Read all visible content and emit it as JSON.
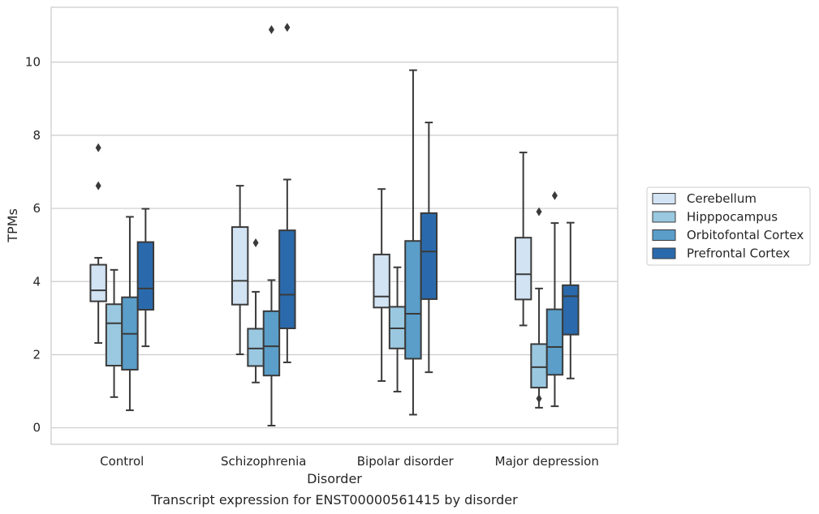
{
  "chart_data": {
    "type": "box",
    "xlabel": "Disorder",
    "ylabel": "TPMs",
    "caption": "Transcript expression for ENST00000561415 by disorder",
    "ylim": [
      -0.45,
      11.5
    ],
    "yticks": [
      "0",
      "2",
      "4",
      "6",
      "8",
      "10"
    ],
    "grid": "horizontal",
    "legend_position": "right",
    "categories": [
      "Control",
      "Schizophrenia",
      "Bipolar disorder",
      "Major depression"
    ],
    "series": [
      {
        "name": "Cerebellum",
        "color": "#d2e3f3",
        "boxes": [
          {
            "whisker_low": 2.32,
            "q1": 3.46,
            "median": 3.76,
            "q3": 4.46,
            "whisker_high": 4.65,
            "outliers": [
              7.66,
              6.62
            ]
          },
          {
            "whisker_low": 2.01,
            "q1": 3.37,
            "median": 4.02,
            "q3": 5.49,
            "whisker_high": 6.62,
            "outliers": []
          },
          {
            "whisker_low": 1.28,
            "q1": 3.29,
            "median": 3.59,
            "q3": 4.74,
            "whisker_high": 6.53,
            "outliers": []
          },
          {
            "whisker_low": 2.8,
            "q1": 3.51,
            "median": 4.2,
            "q3": 5.2,
            "whisker_high": 7.53,
            "outliers": []
          }
        ]
      },
      {
        "name": "Hipppocampus",
        "color": "#9ac8e0",
        "boxes": [
          {
            "whisker_low": 0.84,
            "q1": 1.7,
            "median": 2.86,
            "q3": 3.38,
            "whisker_high": 4.32,
            "outliers": []
          },
          {
            "whisker_low": 1.24,
            "q1": 1.69,
            "median": 2.17,
            "q3": 2.71,
            "whisker_high": 3.72,
            "outliers": [
              5.06
            ]
          },
          {
            "whisker_low": 0.99,
            "q1": 2.17,
            "median": 2.72,
            "q3": 3.31,
            "whisker_high": 4.39,
            "outliers": []
          },
          {
            "whisker_low": 0.55,
            "q1": 1.1,
            "median": 1.66,
            "q3": 2.29,
            "whisker_high": 3.81,
            "outliers": [
              5.91,
              0.8
            ]
          }
        ]
      },
      {
        "name": "Orbitofontal Cortex",
        "color": "#5a9ec9",
        "boxes": [
          {
            "whisker_low": 0.48,
            "q1": 1.59,
            "median": 2.57,
            "q3": 3.57,
            "whisker_high": 5.77,
            "outliers": []
          },
          {
            "whisker_low": 0.06,
            "q1": 1.43,
            "median": 2.23,
            "q3": 3.19,
            "whisker_high": 4.04,
            "outliers": [
              10.89
            ]
          },
          {
            "whisker_low": 0.36,
            "q1": 1.89,
            "median": 3.12,
            "q3": 5.11,
            "whisker_high": 9.78,
            "outliers": []
          },
          {
            "whisker_low": 0.59,
            "q1": 1.45,
            "median": 2.21,
            "q3": 3.24,
            "whisker_high": 5.6,
            "outliers": [
              6.35
            ]
          }
        ]
      },
      {
        "name": "Prefrontal Cortex",
        "color": "#2a6aac",
        "boxes": [
          {
            "whisker_low": 2.23,
            "q1": 3.23,
            "median": 3.81,
            "q3": 5.08,
            "whisker_high": 5.99,
            "outliers": []
          },
          {
            "whisker_low": 1.79,
            "q1": 2.72,
            "median": 3.64,
            "q3": 5.4,
            "whisker_high": 6.79,
            "outliers": [
              10.95
            ]
          },
          {
            "whisker_low": 1.52,
            "q1": 3.52,
            "median": 4.82,
            "q3": 5.87,
            "whisker_high": 8.35,
            "outliers": []
          },
          {
            "whisker_low": 1.35,
            "q1": 2.55,
            "median": 3.6,
            "q3": 3.9,
            "whisker_high": 5.61,
            "outliers": []
          }
        ]
      }
    ]
  }
}
